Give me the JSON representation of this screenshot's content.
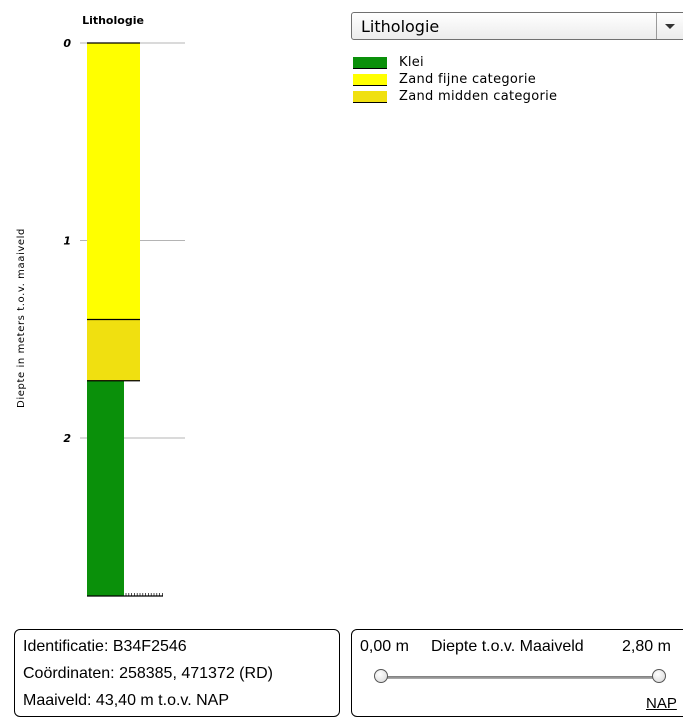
{
  "chart_data": {
    "type": "bar",
    "title": "Lithologie",
    "ylabel": "Diepte in meters t.o.v. maaiveld",
    "yticks": [
      0,
      1,
      2
    ],
    "ylim": [
      0,
      2.8
    ],
    "layers": [
      {
        "name": "Zand fijne categorie",
        "top": 0.0,
        "bottom": 1.4,
        "color": "#ffff00",
        "width_class": "wide"
      },
      {
        "name": "Zand midden categorie",
        "top": 1.4,
        "bottom": 1.71,
        "color": "#f0e010",
        "width_class": "wide"
      },
      {
        "name": "Klei",
        "top": 1.71,
        "bottom": 2.8,
        "color": "#0a900a",
        "width_class": "narrow"
      }
    ]
  },
  "dropdown": {
    "selected": "Lithologie"
  },
  "legend": [
    {
      "label": "Klei",
      "color": "#0a900a"
    },
    {
      "label": "Zand fijne categorie",
      "color": "#ffff00"
    },
    {
      "label": "Zand midden categorie",
      "color": "#f0e010"
    }
  ],
  "info": {
    "identification": "Identificatie: B34F2546",
    "coordinates": "Coördinaten: 258385, 471372 (RD)",
    "ground_level": "Maaiveld: 43,40 m t.o.v. NAP"
  },
  "depth_filter": {
    "min_label": "0,00 m",
    "title": "Diepte t.o.v. Maaiveld",
    "max_label": "2,80 m",
    "slider_min": 0.0,
    "slider_max": 2.8,
    "nap_link": "NAP"
  }
}
